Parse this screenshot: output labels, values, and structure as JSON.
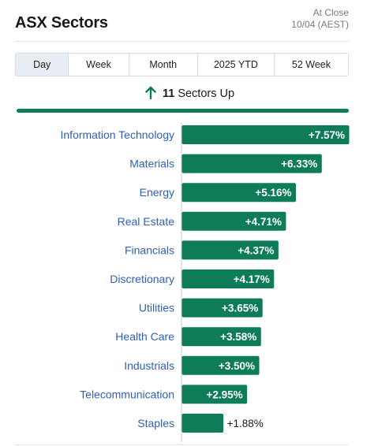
{
  "header": {
    "title": "ASX Sectors",
    "as_of_line1": "At Close",
    "as_of_line2": "10/04 (AEST)"
  },
  "tabs": [
    {
      "label": "Day",
      "active": true
    },
    {
      "label": "Week",
      "active": false
    },
    {
      "label": "Month",
      "active": false
    },
    {
      "label": "2025 YTD",
      "active": false
    },
    {
      "label": "52 Week",
      "active": false
    }
  ],
  "summary": {
    "icon": "arrow-up-icon",
    "count": "11",
    "label": "Sectors Up"
  },
  "colors": {
    "positive": "#0e7c59",
    "label_blue": "#2f5fb3",
    "axis": "#c8c8c8"
  },
  "chart_data": {
    "type": "bar",
    "orientation": "horizontal",
    "categories": [
      "Information Technology",
      "Materials",
      "Energy",
      "Real Estate",
      "Financials",
      "Discretionary",
      "Utilities",
      "Health Care",
      "Industrials",
      "Telecommunication",
      "Staples"
    ],
    "values": [
      7.57,
      6.33,
      5.16,
      4.71,
      4.37,
      4.17,
      3.65,
      3.58,
      3.5,
      2.95,
      1.88
    ],
    "value_labels": [
      "+7.57%",
      "+6.33%",
      "+5.16%",
      "+4.71%",
      "+4.37%",
      "+4.17%",
      "+3.65%",
      "+3.58%",
      "+3.50%",
      "+2.95%",
      "+1.88%"
    ],
    "xlim": [
      0,
      7.57
    ]
  }
}
